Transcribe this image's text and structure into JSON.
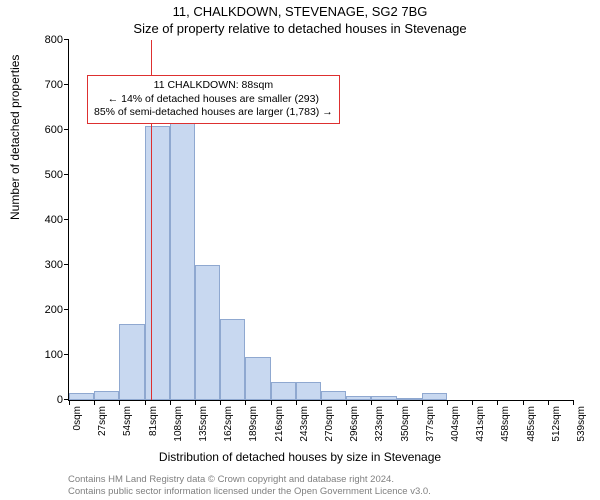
{
  "chart": {
    "type": "histogram",
    "title_line1": "11, CHALKDOWN, STEVENAGE, SG2 7BG",
    "title_line2": "Size of property relative to detached houses in Stevenage",
    "title_fontsize": 13,
    "y_axis_label": "Number of detached properties",
    "x_axis_label": "Distribution of detached houses by size in Stevenage",
    "label_fontsize": 12,
    "ylim": [
      0,
      800
    ],
    "ytick_step": 100,
    "y_ticks": [
      0,
      100,
      200,
      300,
      400,
      500,
      600,
      700,
      800
    ],
    "x_ticks": [
      "0sqm",
      "27sqm",
      "54sqm",
      "81sqm",
      "108sqm",
      "135sqm",
      "162sqm",
      "189sqm",
      "216sqm",
      "243sqm",
      "270sqm",
      "296sqm",
      "323sqm",
      "350sqm",
      "377sqm",
      "404sqm",
      "431sqm",
      "458sqm",
      "485sqm",
      "512sqm",
      "539sqm"
    ],
    "x_tick_fontsize": 10,
    "bar_values": [
      15,
      20,
      170,
      610,
      655,
      300,
      180,
      95,
      40,
      40,
      20,
      10,
      10,
      5,
      15,
      0,
      0,
      0,
      0,
      0
    ],
    "bar_fill_color": "#c8d8f0",
    "bar_border_color": "#8fa8d0",
    "background_color": "#ffffff",
    "axis_color": "#000000",
    "marker_line_color": "#dd3030",
    "marker_position_sqm": 88,
    "x_domain": [
      0,
      539
    ],
    "annotation": {
      "line1": "11 CHALKDOWN: 88sqm",
      "line2": "← 14% of detached houses are smaller (293)",
      "line3": "85% of semi-detached houses are larger (1,783) →",
      "border_color": "#dd3030",
      "text_color": "#000000",
      "fontsize": 10.5
    },
    "footer_line1": "Contains HM Land Registry data © Crown copyright and database right 2024.",
    "footer_line2": "Contains public sector information licensed under the Open Government Licence v3.0.",
    "footer_color": "#808080",
    "footer_fontsize": 9.5
  }
}
